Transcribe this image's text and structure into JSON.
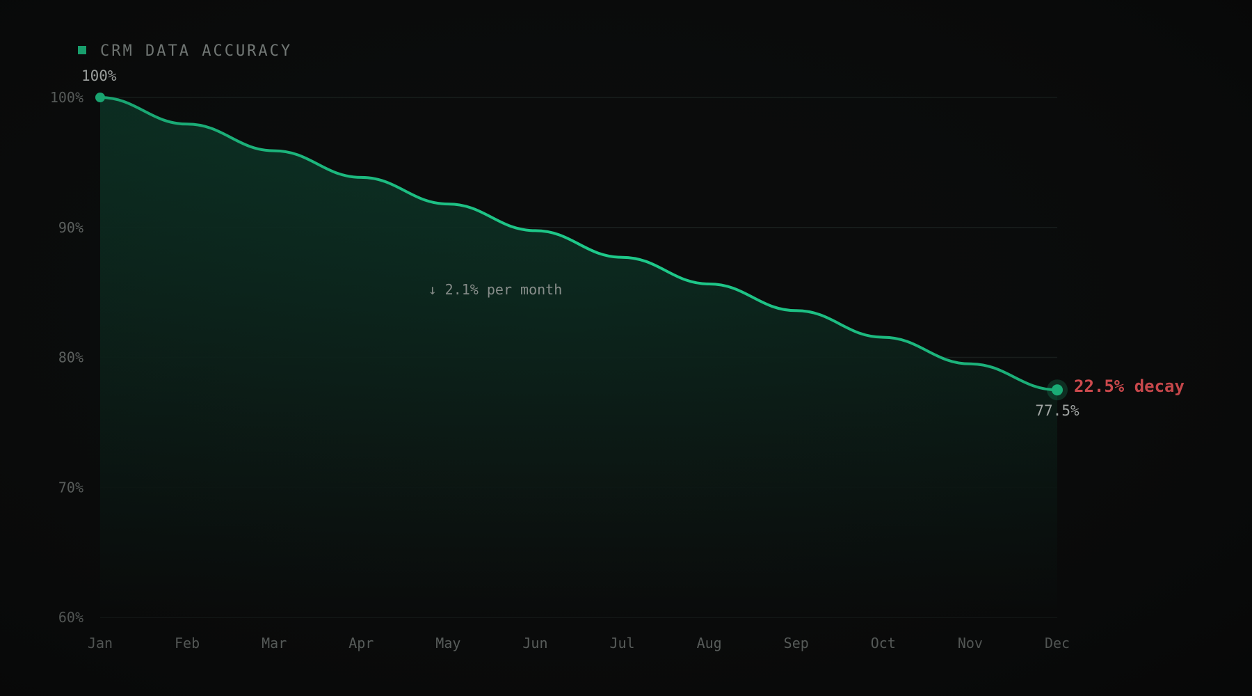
{
  "colors": {
    "background": "#0b0c0c",
    "line": "#1fd18f",
    "area_top": "#0d3a2a",
    "grid": "#1b2220",
    "tick": "#6f7472",
    "decay": "#ff5a5f",
    "value_label": "#c7cbc9"
  },
  "chart_data": {
    "type": "area",
    "title": "CRM DATA ACCURACY",
    "xlabel": "",
    "ylabel": "",
    "categories": [
      "Jan",
      "Feb",
      "Mar",
      "Apr",
      "May",
      "Jun",
      "Jul",
      "Aug",
      "Sep",
      "Oct",
      "Nov",
      "Dec"
    ],
    "series": [
      {
        "name": "",
        "values": [
          100,
          97.95,
          95.9,
          93.85,
          91.8,
          89.75,
          87.7,
          85.65,
          83.6,
          81.55,
          79.5,
          77.5
        ]
      }
    ],
    "ylim": [
      60,
      100
    ],
    "yticks": [
      60,
      70,
      80,
      90,
      100
    ],
    "ytick_labels": [
      "60%",
      "70%",
      "80%",
      "90%",
      "100%"
    ],
    "grid": true,
    "legend": "top-left",
    "start_label": "100%",
    "end_label": "77.5%",
    "decay_label": "22.5% decay",
    "annotation": "↓ 2.1% per month"
  }
}
